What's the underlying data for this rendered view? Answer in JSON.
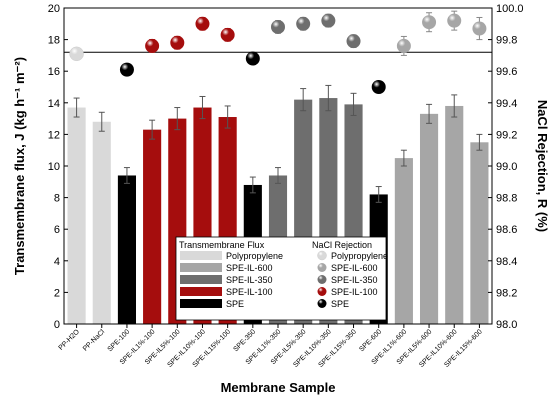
{
  "chart_data": {
    "type": "bar",
    "xlabel": "Membrane Sample",
    "ylabel_left": "Transmembrane flux, J (kg h⁻¹ m⁻²)",
    "ylabel_right": "NaCl Rejection, R (%)",
    "ylim_left": [
      0,
      20
    ],
    "ylim_right": [
      98.0,
      100.0
    ],
    "yticks_left": [
      "0",
      "2",
      "4",
      "6",
      "8",
      "10",
      "12",
      "14",
      "16",
      "18",
      "20"
    ],
    "yticks_right": [
      "98.0",
      "98.2",
      "98.4",
      "98.6",
      "98.8",
      "99.0",
      "99.2",
      "99.4",
      "99.6",
      "99.8",
      "100.0"
    ],
    "reference_line_rejection": 99.72,
    "categories": [
      "PP-H2O",
      "PP-NaCl",
      "SPE-100",
      "SPE-IL1%-100",
      "SPE-IL5%-100",
      "SPE-IL10%-100",
      "SPE-IL15%-100",
      "SPE-350",
      "SPE-IL1%-350",
      "SPE-IL5%-350",
      "SPE-IL10%-350",
      "SPE-IL15%-350",
      "SPE-600",
      "SPE-IL1%-600",
      "SPE-IL5%-600",
      "SPE-IL10%-600",
      "SPE-IL15%-600"
    ],
    "flux": [
      13.7,
      12.8,
      9.4,
      12.3,
      13.0,
      13.7,
      13.1,
      8.8,
      9.4,
      14.2,
      14.3,
      13.9,
      8.2,
      10.5,
      13.3,
      13.8,
      11.5
    ],
    "flux_err": [
      0.6,
      0.6,
      0.5,
      0.6,
      0.7,
      0.7,
      0.7,
      0.5,
      0.5,
      0.7,
      0.8,
      0.7,
      0.5,
      0.5,
      0.6,
      0.7,
      0.5
    ],
    "rejection": [
      99.71,
      null,
      99.61,
      99.76,
      99.78,
      99.9,
      99.83,
      99.68,
      99.88,
      99.9,
      99.92,
      99.79,
      99.5,
      99.76,
      99.91,
      99.92,
      99.87
    ],
    "rejection_err": [
      0.0,
      null,
      0.0,
      0.04,
      0.04,
      0.04,
      0.04,
      0.0,
      0.04,
      0.04,
      0.04,
      0.04,
      0.0,
      0.06,
      0.06,
      0.06,
      0.07
    ],
    "bar_groups": [
      "pp",
      "pp",
      "spe",
      "il100",
      "il100",
      "il100",
      "il100",
      "spe",
      "il350",
      "il350",
      "il350",
      "il350",
      "spe",
      "il600",
      "il600",
      "il600",
      "il600"
    ],
    "legend_flux_title": "Transmembrane Flux",
    "legend_rejection_title": "NaCl Rejection",
    "legend_entries": [
      {
        "label": "Polypropylene",
        "group": "pp"
      },
      {
        "label": "SPE-IL-600",
        "group": "il600"
      },
      {
        "label": "SPE-IL-350",
        "group": "il350"
      },
      {
        "label": "SPE-IL-100",
        "group": "il100"
      },
      {
        "label": "SPE",
        "group": "spe"
      }
    ],
    "colors": {
      "pp": "#d9d9d9",
      "il600": "#a6a6a6",
      "il350": "#6e6e6e",
      "il100": "#a50d0d",
      "spe": "#000000"
    },
    "legend_placement": "bottom-center",
    "grid": false
  }
}
